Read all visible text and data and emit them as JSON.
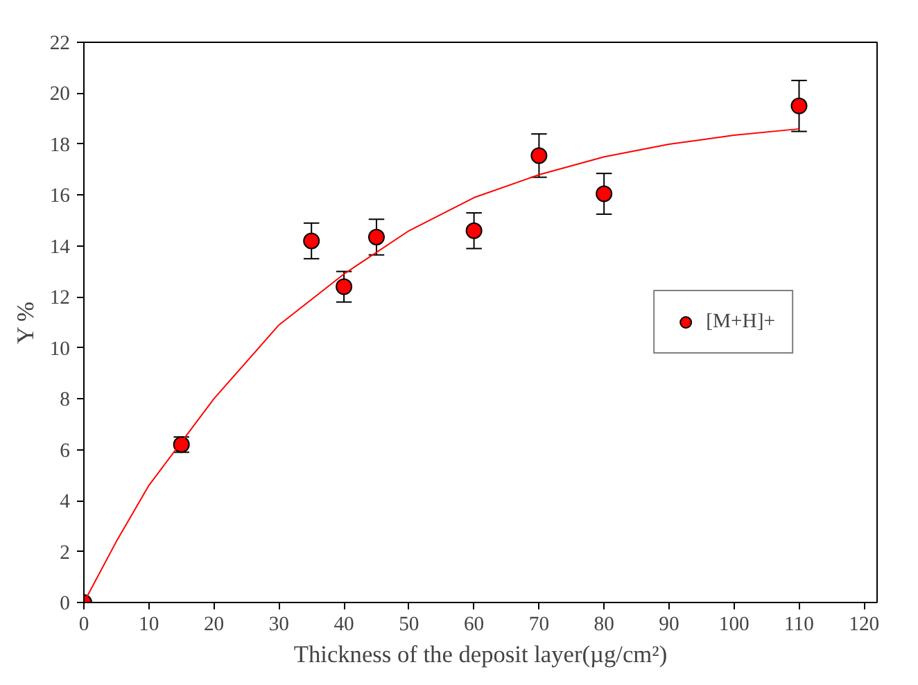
{
  "chart_data": {
    "type": "scatter",
    "xlabel": "Thickness of the deposit layer(µg/cm²)",
    "ylabel": "Y %",
    "x": [
      0,
      15,
      35,
      40,
      45,
      60,
      70,
      80,
      110
    ],
    "series": [
      {
        "name": "[M+H]+",
        "color": "#ff0000",
        "values": [
          0,
          6.2,
          14.2,
          12.4,
          14.35,
          14.6,
          17.55,
          16.05,
          19.5
        ],
        "errors": [
          null,
          0.3,
          0.7,
          0.6,
          0.7,
          0.7,
          0.85,
          0.8,
          1.0
        ],
        "marker": "circle"
      },
      {
        "type": "line",
        "color": "#ff0000",
        "x": [
          0,
          5,
          10,
          15,
          20,
          30,
          40,
          50,
          60,
          70,
          80,
          90,
          100,
          110
        ],
        "values": [
          0,
          2.4,
          4.6,
          6.3,
          8.0,
          10.9,
          12.9,
          14.6,
          15.9,
          16.8,
          17.5,
          18.0,
          18.35,
          18.6
        ]
      }
    ],
    "xlim": [
      0,
      122
    ],
    "ylim": [
      0,
      22
    ],
    "xticks": [
      0,
      10,
      20,
      30,
      40,
      50,
      60,
      70,
      80,
      90,
      100,
      110,
      120
    ],
    "yticks": [
      0,
      2,
      4,
      6,
      8,
      10,
      12,
      14,
      16,
      18,
      20,
      22
    ],
    "grid": false,
    "legend": "right"
  }
}
